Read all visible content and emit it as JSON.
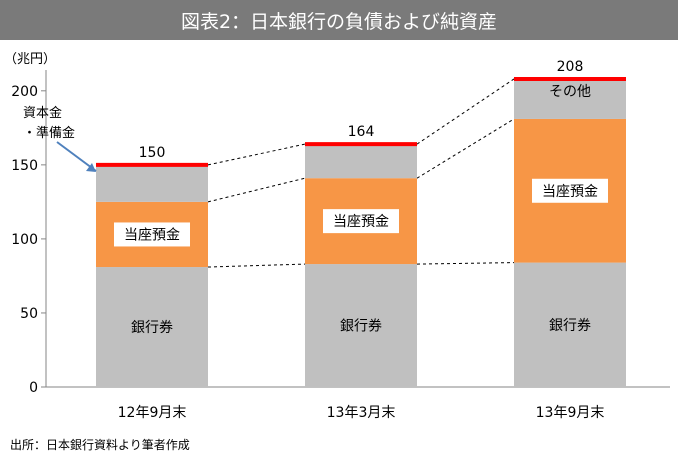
{
  "title": "図表2：日本銀行の負債および純資産",
  "source": "出所：日本銀行資料より筆者作成",
  "chart_data": {
    "type": "bar",
    "stacked": true,
    "unit_label": "（兆円）",
    "categories": [
      "12年9月末",
      "13年3月末",
      "13年9月末"
    ],
    "ylim": [
      0,
      210
    ],
    "yticks": [
      0,
      50,
      100,
      150,
      200
    ],
    "grid": false,
    "series": [
      {
        "name": "銀行券",
        "color": "#c0c0c0",
        "values": [
          81,
          83,
          84
        ],
        "labels": [
          "銀行券",
          "銀行券",
          "銀行券"
        ]
      },
      {
        "name": "当座預金",
        "color": "#f79646",
        "values": [
          44,
          58,
          97
        ],
        "labels": [
          "当座預金",
          "当座預金",
          "当座預金"
        ]
      },
      {
        "name": "その他",
        "color": "#c0c0c0",
        "values": [
          25,
          23,
          27
        ],
        "labels": [
          "",
          "",
          "その他"
        ]
      }
    ],
    "totals": [
      150,
      164,
      208
    ],
    "total_marker_color": "#ff0000",
    "annotation": {
      "lines": [
        "資本金",
        "・準備金"
      ],
      "arrow_color": "#4f81bd"
    }
  }
}
